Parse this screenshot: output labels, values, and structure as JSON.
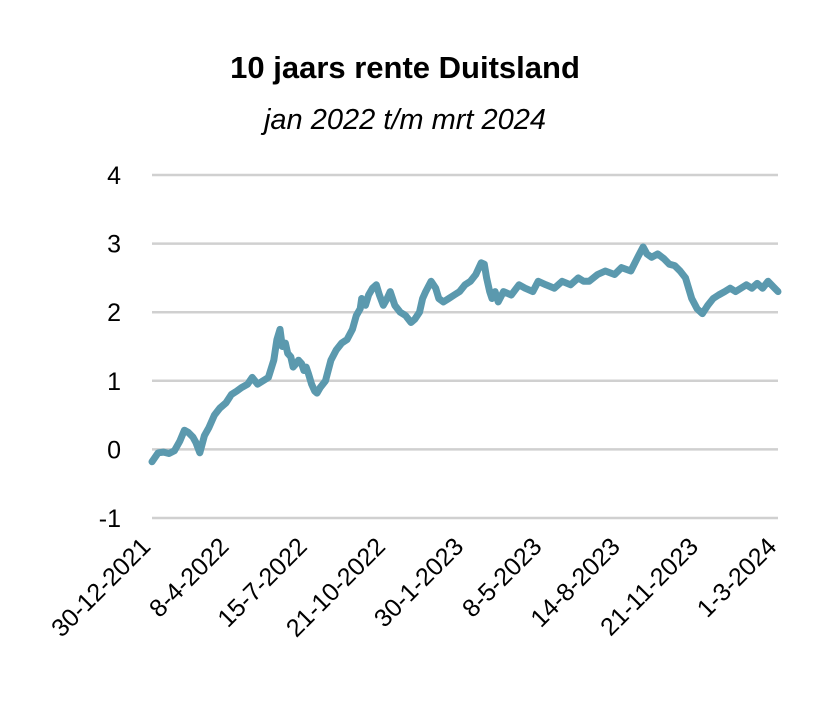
{
  "chart_data": {
    "type": "line",
    "title": "10 jaars rente Duitsland",
    "subtitle": "jan 2022 t/m mrt 2024",
    "xlabel": "",
    "ylabel": "",
    "ylim": [
      -1,
      4
    ],
    "yticks": [
      "4",
      "3",
      "2",
      "1",
      "0",
      "-1"
    ],
    "grid": true,
    "legend": "none",
    "line_color": "#5b99ae",
    "grid_color": "#d0d0d0",
    "xlim": [
      "2021-12-30",
      "2024-03-21"
    ],
    "xticks": [
      "30-12-2021",
      "8-4-2022",
      "15-7-2022",
      "21-10-2022",
      "30-1-2023",
      "8-5-2023",
      "14-8-2023",
      "21-11-2023",
      "1-3-2024"
    ],
    "series": [
      {
        "x": [
          "2021-12-30",
          "2022-01-07",
          "2022-01-14",
          "2022-01-21",
          "2022-01-28",
          "2022-02-04",
          "2022-02-10",
          "2022-02-15",
          "2022-02-21",
          "2022-02-25",
          "2022-03-02",
          "2022-03-04",
          "2022-03-08",
          "2022-03-14",
          "2022-03-21",
          "2022-03-28",
          "2022-04-05",
          "2022-04-12",
          "2022-04-19",
          "2022-04-25",
          "2022-05-03",
          "2022-05-09",
          "2022-05-16",
          "2022-05-23",
          "2022-05-30",
          "2022-06-06",
          "2022-06-10",
          "2022-06-14",
          "2022-06-17",
          "2022-06-21",
          "2022-06-24",
          "2022-06-28",
          "2022-07-01",
          "2022-07-05",
          "2022-07-08",
          "2022-07-12",
          "2022-07-15",
          "2022-07-18",
          "2022-07-21",
          "2022-07-25",
          "2022-07-29",
          "2022-08-01",
          "2022-08-05",
          "2022-08-12",
          "2022-08-19",
          "2022-08-26",
          "2022-09-02",
          "2022-09-09",
          "2022-09-16",
          "2022-09-21",
          "2022-09-26",
          "2022-09-28",
          "2022-10-03",
          "2022-10-07",
          "2022-10-12",
          "2022-10-17",
          "2022-10-21",
          "2022-10-26",
          "2022-10-31",
          "2022-11-04",
          "2022-11-10",
          "2022-11-17",
          "2022-11-24",
          "2022-12-01",
          "2022-12-06",
          "2022-12-12",
          "2022-12-16",
          "2022-12-20",
          "2022-12-27",
          "2023-01-02",
          "2023-01-06",
          "2023-01-12",
          "2023-01-19",
          "2023-01-26",
          "2023-02-02",
          "2023-02-09",
          "2023-02-16",
          "2023-02-23",
          "2023-03-02",
          "2023-03-06",
          "2023-03-09",
          "2023-03-13",
          "2023-03-16",
          "2023-03-20",
          "2023-03-24",
          "2023-03-31",
          "2023-04-10",
          "2023-04-20",
          "2023-04-28",
          "2023-05-08",
          "2023-05-15",
          "2023-05-25",
          "2023-06-05",
          "2023-06-15",
          "2023-06-26",
          "2023-07-06",
          "2023-07-13",
          "2023-07-20",
          "2023-07-31",
          "2023-08-10",
          "2023-08-22",
          "2023-08-31",
          "2023-09-12",
          "2023-09-21",
          "2023-09-28",
          "2023-10-03",
          "2023-10-09",
          "2023-10-17",
          "2023-10-25",
          "2023-11-01",
          "2023-11-08",
          "2023-11-15",
          "2023-11-22",
          "2023-11-30",
          "2023-12-07",
          "2023-12-14",
          "2023-12-21",
          "2023-12-28",
          "2024-01-04",
          "2024-01-12",
          "2024-01-19",
          "2024-01-26",
          "2024-02-02",
          "2024-02-09",
          "2024-02-16",
          "2024-02-23",
          "2024-03-01",
          "2024-03-08",
          "2024-03-14",
          "2024-03-21"
        ],
        "y": [
          -0.18,
          -0.05,
          -0.04,
          -0.06,
          -0.02,
          0.12,
          0.28,
          0.25,
          0.18,
          0.1,
          -0.05,
          0.03,
          0.2,
          0.32,
          0.5,
          0.6,
          0.68,
          0.8,
          0.85,
          0.9,
          0.95,
          1.05,
          0.95,
          1.0,
          1.05,
          1.3,
          1.6,
          1.75,
          1.5,
          1.55,
          1.4,
          1.35,
          1.2,
          1.25,
          1.3,
          1.25,
          1.15,
          1.2,
          1.1,
          0.95,
          0.85,
          0.82,
          0.9,
          1.0,
          1.3,
          1.45,
          1.55,
          1.6,
          1.75,
          1.95,
          2.05,
          2.2,
          2.1,
          2.25,
          2.35,
          2.4,
          2.25,
          2.1,
          2.2,
          2.3,
          2.1,
          2.0,
          1.95,
          1.85,
          1.9,
          2.0,
          2.2,
          2.3,
          2.45,
          2.35,
          2.2,
          2.15,
          2.2,
          2.25,
          2.3,
          2.4,
          2.45,
          2.55,
          2.72,
          2.7,
          2.5,
          2.3,
          2.2,
          2.3,
          2.15,
          2.3,
          2.25,
          2.4,
          2.35,
          2.3,
          2.45,
          2.4,
          2.35,
          2.45,
          2.4,
          2.5,
          2.45,
          2.45,
          2.55,
          2.6,
          2.55,
          2.65,
          2.6,
          2.8,
          2.95,
          2.85,
          2.8,
          2.85,
          2.78,
          2.7,
          2.68,
          2.6,
          2.5,
          2.2,
          2.05,
          1.98,
          2.1,
          2.2,
          2.25,
          2.3,
          2.35,
          2.3,
          2.35,
          2.4,
          2.35,
          2.42,
          2.35,
          2.45,
          2.38,
          2.3
        ]
      }
    ]
  }
}
